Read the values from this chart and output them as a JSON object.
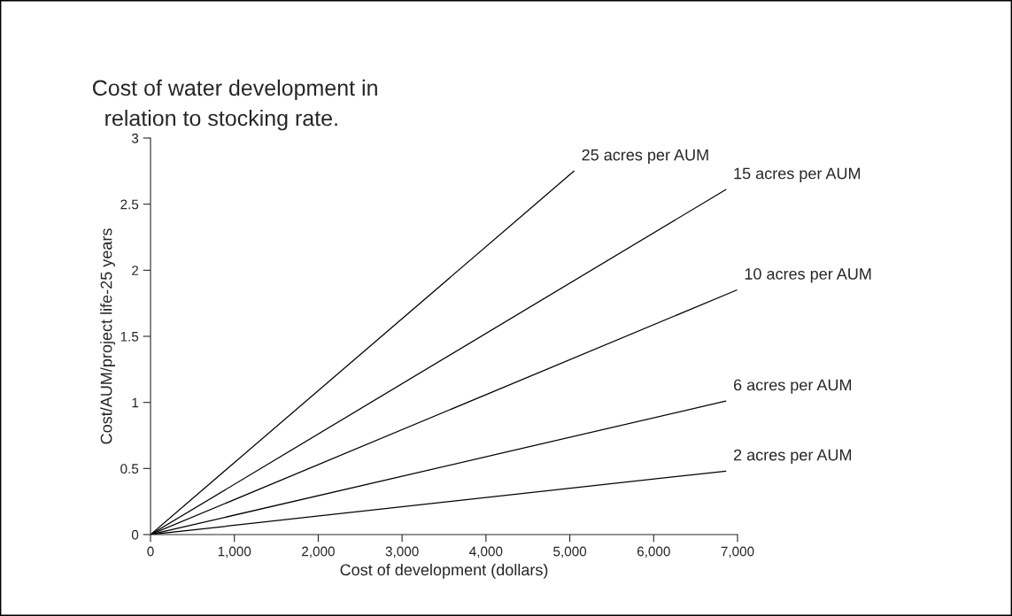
{
  "chart_data": {
    "type": "line",
    "title": "Cost of water development in\n  relation to stocking rate.",
    "xlabel": "Cost of development (dollars)",
    "ylabel": "Cost/AUM/project life-25 years",
    "series": [
      {
        "name": "25 acres per AUM",
        "color": "#000000",
        "x": [
          0,
          5050
        ],
        "values": [
          0,
          2.75
        ]
      },
      {
        "name": "15 acres per AUM",
        "color": "#000000",
        "x": [
          0,
          6860
        ],
        "values": [
          0,
          2.61
        ]
      },
      {
        "name": "10 acres per AUM",
        "color": "#000000",
        "x": [
          0,
          6990
        ],
        "values": [
          0,
          1.85
        ]
      },
      {
        "name": "6 acres per AUM",
        "color": "#000000",
        "x": [
          0,
          6860
        ],
        "values": [
          0,
          1.01
        ]
      },
      {
        "name": "2 acres per AUM",
        "color": "#000000",
        "x": [
          0,
          6860
        ],
        "values": [
          0,
          0.48
        ]
      }
    ],
    "xlim": [
      0,
      7000
    ],
    "ylim": [
      0,
      3
    ],
    "xticks": [
      0,
      {
        "value": 1000,
        "label": "1,000"
      },
      {
        "value": 2000,
        "label": "2,000"
      },
      {
        "value": 3000,
        "label": "3,000"
      },
      {
        "value": 4000,
        "label": "4,000"
      },
      {
        "value": 5000,
        "label": "5,000"
      },
      {
        "value": 6000,
        "label": "6,000"
      },
      {
        "value": 7000,
        "label": "7,000"
      }
    ],
    "yticks": [
      0,
      0.5,
      1,
      1.5,
      2,
      2.5,
      3
    ],
    "grid": false,
    "legend": false,
    "marker": "none",
    "line_style": "solid"
  }
}
